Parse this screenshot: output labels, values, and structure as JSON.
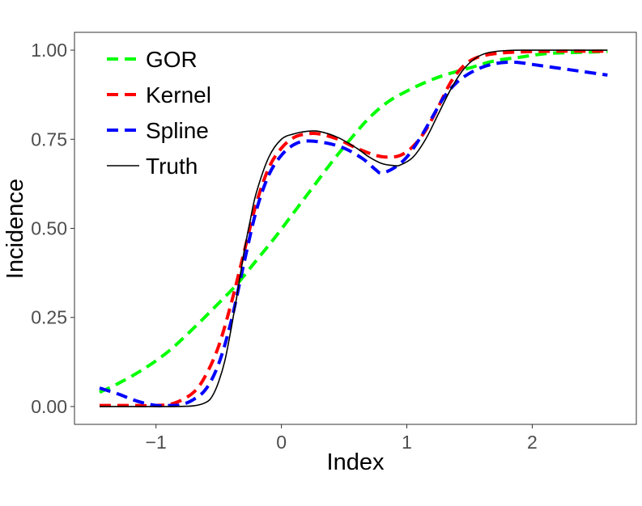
{
  "chart_data": {
    "type": "line",
    "xlabel": "Index",
    "ylabel": "Incidence",
    "xlim": [
      -1.65,
      2.83
    ],
    "ylim": [
      -0.05,
      1.05
    ],
    "xticks": [
      {
        "value": -1,
        "label": "−1"
      },
      {
        "value": 0,
        "label": "0"
      },
      {
        "value": 1,
        "label": "1"
      },
      {
        "value": 2,
        "label": "2"
      }
    ],
    "yticks": [
      {
        "value": 0,
        "label": "0.00"
      },
      {
        "value": 0.25,
        "label": "0.25"
      },
      {
        "value": 0.5,
        "label": "0.50"
      },
      {
        "value": 0.75,
        "label": "0.75"
      },
      {
        "value": 1,
        "label": "1.00"
      }
    ],
    "grid": false,
    "legend_position": "top-left",
    "series": [
      {
        "name": "GOR",
        "color": "#00ff00",
        "dash": "dashed",
        "points": [
          [
            -1.45,
            0.04
          ],
          [
            -1.3,
            0.065
          ],
          [
            -1.1,
            0.105
          ],
          [
            -0.9,
            0.155
          ],
          [
            -0.7,
            0.22
          ],
          [
            -0.5,
            0.29
          ],
          [
            -0.35,
            0.345
          ],
          [
            -0.2,
            0.41
          ],
          [
            -0.05,
            0.475
          ],
          [
            0.1,
            0.545
          ],
          [
            0.25,
            0.615
          ],
          [
            0.4,
            0.685
          ],
          [
            0.55,
            0.75
          ],
          [
            0.7,
            0.81
          ],
          [
            0.85,
            0.855
          ],
          [
            1.0,
            0.885
          ],
          [
            1.15,
            0.91
          ],
          [
            1.3,
            0.93
          ],
          [
            1.5,
            0.95
          ],
          [
            1.7,
            0.97
          ],
          [
            1.9,
            0.98
          ],
          [
            2.1,
            0.99
          ],
          [
            2.3,
            0.993
          ],
          [
            2.6,
            0.996
          ]
        ]
      },
      {
        "name": "Kernel",
        "color": "#ff0000",
        "dash": "dashed",
        "points": [
          [
            -1.45,
            0.003
          ],
          [
            -1.2,
            0.003
          ],
          [
            -1.0,
            0.003
          ],
          [
            -0.85,
            0.01
          ],
          [
            -0.7,
            0.04
          ],
          [
            -0.6,
            0.09
          ],
          [
            -0.5,
            0.17
          ],
          [
            -0.4,
            0.29
          ],
          [
            -0.3,
            0.43
          ],
          [
            -0.2,
            0.57
          ],
          [
            -0.1,
            0.67
          ],
          [
            0.0,
            0.725
          ],
          [
            0.1,
            0.755
          ],
          [
            0.2,
            0.765
          ],
          [
            0.3,
            0.765
          ],
          [
            0.45,
            0.75
          ],
          [
            0.6,
            0.725
          ],
          [
            0.75,
            0.705
          ],
          [
            0.85,
            0.7
          ],
          [
            0.95,
            0.705
          ],
          [
            1.05,
            0.73
          ],
          [
            1.15,
            0.775
          ],
          [
            1.25,
            0.84
          ],
          [
            1.35,
            0.91
          ],
          [
            1.45,
            0.955
          ],
          [
            1.55,
            0.978
          ],
          [
            1.7,
            0.99
          ],
          [
            1.9,
            0.995
          ],
          [
            2.2,
            0.997
          ],
          [
            2.6,
            0.997
          ]
        ]
      },
      {
        "name": "Spline",
        "color": "#0000ff",
        "dash": "dashed",
        "points": [
          [
            -1.45,
            0.052
          ],
          [
            -1.3,
            0.035
          ],
          [
            -1.15,
            0.015
          ],
          [
            -1.0,
            0.003
          ],
          [
            -0.9,
            0.003
          ],
          [
            -0.8,
            0.005
          ],
          [
            -0.7,
            0.02
          ],
          [
            -0.6,
            0.05
          ],
          [
            -0.5,
            0.12
          ],
          [
            -0.4,
            0.24
          ],
          [
            -0.3,
            0.4
          ],
          [
            -0.2,
            0.55
          ],
          [
            -0.1,
            0.65
          ],
          [
            0.0,
            0.705
          ],
          [
            0.1,
            0.735
          ],
          [
            0.2,
            0.745
          ],
          [
            0.35,
            0.74
          ],
          [
            0.5,
            0.725
          ],
          [
            0.65,
            0.695
          ],
          [
            0.75,
            0.665
          ],
          [
            0.8,
            0.655
          ],
          [
            0.9,
            0.67
          ],
          [
            1.0,
            0.7
          ],
          [
            1.1,
            0.75
          ],
          [
            1.2,
            0.81
          ],
          [
            1.3,
            0.87
          ],
          [
            1.4,
            0.91
          ],
          [
            1.5,
            0.935
          ],
          [
            1.6,
            0.952
          ],
          [
            1.7,
            0.962
          ],
          [
            1.8,
            0.966
          ],
          [
            1.9,
            0.965
          ],
          [
            2.0,
            0.96
          ],
          [
            2.2,
            0.95
          ],
          [
            2.4,
            0.94
          ],
          [
            2.6,
            0.93
          ]
        ]
      },
      {
        "name": "Truth",
        "color": "#000000",
        "dash": "solid",
        "points": [
          [
            -1.45,
            0.0
          ],
          [
            -1.2,
            0.0
          ],
          [
            -0.9,
            0.0
          ],
          [
            -0.7,
            0.002
          ],
          [
            -0.6,
            0.012
          ],
          [
            -0.55,
            0.03
          ],
          [
            -0.5,
            0.07
          ],
          [
            -0.45,
            0.13
          ],
          [
            -0.4,
            0.22
          ],
          [
            -0.35,
            0.32
          ],
          [
            -0.3,
            0.43
          ],
          [
            -0.25,
            0.52
          ],
          [
            -0.2,
            0.6
          ],
          [
            -0.1,
            0.7
          ],
          [
            0.0,
            0.75
          ],
          [
            0.1,
            0.765
          ],
          [
            0.2,
            0.772
          ],
          [
            0.3,
            0.772
          ],
          [
            0.45,
            0.755
          ],
          [
            0.6,
            0.725
          ],
          [
            0.7,
            0.7
          ],
          [
            0.8,
            0.682
          ],
          [
            0.9,
            0.676
          ],
          [
            0.95,
            0.678
          ],
          [
            1.05,
            0.7
          ],
          [
            1.15,
            0.75
          ],
          [
            1.25,
            0.82
          ],
          [
            1.35,
            0.89
          ],
          [
            1.45,
            0.945
          ],
          [
            1.55,
            0.978
          ],
          [
            1.65,
            0.993
          ],
          [
            1.8,
            0.999
          ],
          [
            2.0,
            1.0
          ],
          [
            2.6,
            1.0
          ]
        ]
      }
    ]
  }
}
